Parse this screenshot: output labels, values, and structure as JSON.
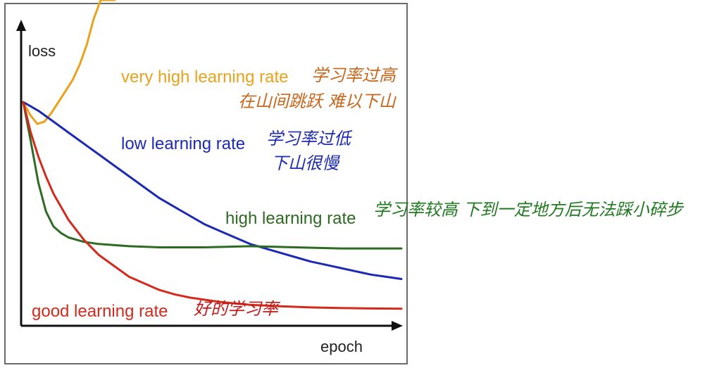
{
  "chart_data": {
    "type": "line",
    "xlabel": "epoch",
    "ylabel": "loss",
    "grid": false,
    "series": [
      {
        "name": "very high learning rate",
        "color": "#e8a21c",
        "x": [
          0,
          1,
          2,
          3,
          4,
          5,
          6,
          7,
          8,
          9,
          10,
          11,
          12,
          13
        ],
        "y": [
          1.0,
          0.94,
          0.9,
          0.91,
          0.95,
          1.0,
          1.05,
          1.1,
          1.17,
          1.26,
          1.38,
          1.55,
          1.8,
          2.2
        ]
      },
      {
        "name": "low learning rate",
        "color": "#1c2ab3",
        "x": [
          0,
          2,
          4,
          6,
          8,
          10,
          12,
          14,
          16,
          18,
          20,
          22,
          24,
          26,
          28,
          30,
          32,
          34,
          36,
          38,
          40,
          42,
          44,
          46,
          48,
          50
        ],
        "y": [
          1.0,
          0.96,
          0.91,
          0.86,
          0.81,
          0.76,
          0.71,
          0.66,
          0.61,
          0.56,
          0.52,
          0.48,
          0.44,
          0.41,
          0.38,
          0.35,
          0.33,
          0.31,
          0.29,
          0.27,
          0.255,
          0.24,
          0.225,
          0.21,
          0.2,
          0.19
        ]
      },
      {
        "name": "high learning rate",
        "color": "#2e6b22",
        "x": [
          0,
          1,
          2,
          3,
          4,
          5,
          6,
          8,
          10,
          14,
          18,
          24,
          30,
          36,
          42,
          48,
          50
        ],
        "y": [
          1.0,
          0.82,
          0.63,
          0.5,
          0.43,
          0.4,
          0.38,
          0.36,
          0.35,
          0.34,
          0.335,
          0.335,
          0.34,
          0.335,
          0.33,
          0.33,
          0.33
        ]
      },
      {
        "name": "good learning rate",
        "color": "#d42a1c",
        "x": [
          0,
          1,
          2,
          3,
          4,
          6,
          8,
          10,
          12,
          14,
          16,
          18,
          20,
          22,
          24,
          26,
          28,
          30,
          34,
          38,
          42,
          46,
          50
        ],
        "y": [
          1.0,
          0.86,
          0.75,
          0.66,
          0.58,
          0.46,
          0.37,
          0.3,
          0.25,
          0.2,
          0.17,
          0.14,
          0.12,
          0.105,
          0.095,
          0.085,
          0.078,
          0.072,
          0.065,
          0.06,
          0.057,
          0.055,
          0.054
        ]
      }
    ],
    "xlim": [
      0,
      50
    ],
    "ylim": [
      0,
      2.2
    ]
  },
  "notes": {
    "very_high_1": "学习率过高",
    "very_high_2": "在山间跳跃 难以下山",
    "low_1": "学习率过低",
    "low_2": "下山很慢",
    "high": "学习率较高 下到一定地方后无法踩小碎步",
    "good": "好的学习率"
  }
}
